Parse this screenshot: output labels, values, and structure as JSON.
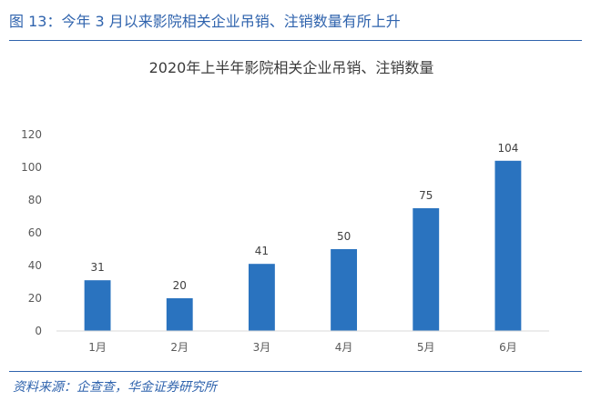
{
  "figure": {
    "title": "图 13：今年 3 月以来影院相关企业吊销、注销数量有所上升",
    "source": "资料来源：企查查，华金证券研究所"
  },
  "colors": {
    "accent": "#2f63ad",
    "bar": "#2a73bf",
    "axis_text": "#595959",
    "title_text": "#3b3b3b"
  },
  "chart_data": {
    "type": "bar",
    "title": "2020年上半年影院相关企业吊销、注销数量",
    "categories": [
      "1月",
      "2月",
      "3月",
      "4月",
      "5月",
      "6月"
    ],
    "values": [
      31,
      20,
      41,
      50,
      75,
      104
    ],
    "data_labels": [
      "31",
      "20",
      "41",
      "50",
      "75",
      "104"
    ],
    "ylim": [
      0,
      120
    ],
    "y_ticks": [
      0,
      20,
      40,
      60,
      80,
      100,
      120
    ],
    "grid": false,
    "legend": "none"
  }
}
